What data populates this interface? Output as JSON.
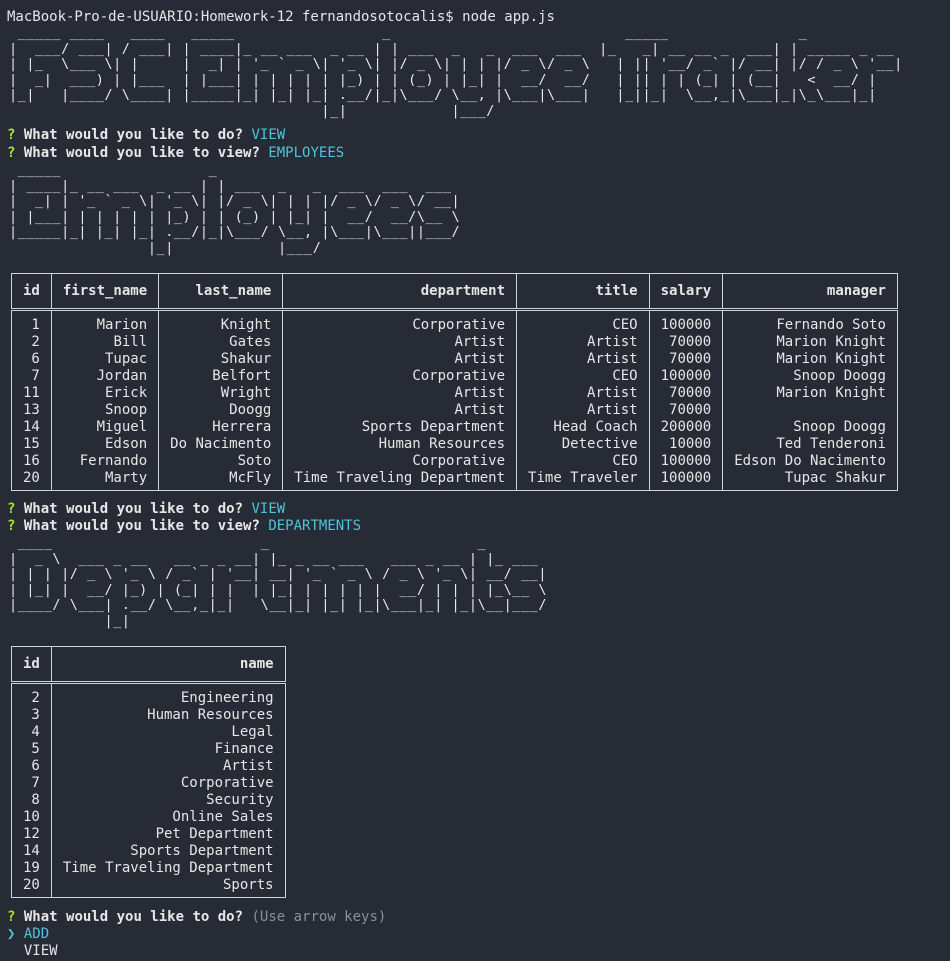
{
  "terminal": {
    "command_line": "MacBook-Pro-de-USUARIO:Homework-12 fernandosotocalis$ node app.js",
    "qmark": "?",
    "pointer": "❯"
  },
  "banners": {
    "tracker": " _____ ____   ____   _____                 _                           _____               _             \n|  ___/ ___| / ___| | ____|_ __ ___  _ __ | | ___  _   _  ___  ___  |_   _| __ __ _  ___| | _____ _ __ \n| |_  \\___ \\| |     |  _| | '_ ` _ \\| '_ \\| |/ _ \\| | | |/ _ \\/ _ \\   | || '__/ _` |/ __| |/ / _ \\ '__|\n|  _|  ___) | |___  | |___| | | | | | |_) | | (_) | |_| |  __/  __/   | || | | (_| | (__|   <  __/ |   \n|_|   |____/ \\____| |_____|_| |_| |_| .__/|_|\\___/ \\__, |\\___|\\___|   |_||_|  \\__,_|\\___|_|\\_\\___|_|   \n                                    |_|            |___/                                               ",
    "employees": " _____                 _                           \n| ____|_ __ ___  _ __ | | ___  _   _  ___  ___  ___ \n|  _| | '_ ` _ \\| '_ \\| |/ _ \\| | | |/ _ \\/ _ \\/ __|\n| |___| | | | | | |_) | | (_) | |_| |  __/  __/\\__ \\\n|_____|_| |_| |_| .__/|_|\\___/ \\__, |\\___|\\___||___/\n                |_|            |___/                ",
    "departments": " ____                        _                        _       \n|  _ \\  ___ _ __   __ _ _ __| |_ _ __ ___   ___ _ __ | |_ ___ \n| | | |/ _ \\ '_ \\ / _` | '__| __| '_ ` _ \\ / _ \\ '_ \\| __/ __|\n| |_| |  __/ |_) | (_| | |  | |_| | | | | |  __/ | | | |_\\__ \\\n|____/ \\___| .__/ \\__,_|_|   \\__|_| |_| |_|\\___|_| |_|\\__|___/\n           |_|                                                 "
  },
  "prompts": {
    "p1_question": "What would you like to do?",
    "p1_answer": "VIEW",
    "p2_question": "What would you like to view?",
    "p2_answer": "EMPLOYEES",
    "p3_question": "What would you like to do?",
    "p3_answer": "VIEW",
    "p4_question": "What would you like to view?",
    "p4_answer": "DEPARTMENTS",
    "p5_question": "What would you like to do?",
    "p5_hint": "(Use arrow keys)",
    "menu_selected": "ADD",
    "menu_other": "VIEW"
  },
  "employees_table": {
    "columns": [
      "id",
      "first_name",
      "last_name",
      "department",
      "title",
      "salary",
      "manager"
    ],
    "rows": [
      [
        "1",
        "Marion",
        "Knight",
        "Corporative",
        "CEO",
        "100000",
        "Fernando Soto"
      ],
      [
        "2",
        "Bill",
        "Gates",
        "Artist",
        "Artist",
        "70000",
        "Marion Knight"
      ],
      [
        "6",
        "Tupac",
        "Shakur",
        "Artist",
        "Artist",
        "70000",
        "Marion Knight"
      ],
      [
        "7",
        "Jordan",
        "Belfort",
        "Corporative",
        "CEO",
        "100000",
        "Snoop Doogg"
      ],
      [
        "11",
        "Erick",
        "Wright",
        "Artist",
        "Artist",
        "70000",
        "Marion Knight"
      ],
      [
        "13",
        "Snoop",
        "Doogg",
        "Artist",
        "Artist",
        "70000",
        ""
      ],
      [
        "14",
        "Miguel",
        "Herrera",
        "Sports Department",
        "Head Coach",
        "200000",
        "Snoop Doogg"
      ],
      [
        "15",
        "Edson",
        "Do Nacimento",
        "Human Resources",
        "Detective",
        "10000",
        "Ted Tenderoni"
      ],
      [
        "16",
        "Fernando",
        "Soto",
        "Corporative",
        "CEO",
        "100000",
        "Edson Do Nacimento"
      ],
      [
        "20",
        "Marty",
        "McFly",
        "Time Traveling Department",
        "Time Traveler",
        "100000",
        "Tupac Shakur"
      ]
    ]
  },
  "departments_table": {
    "columns": [
      "id",
      "name"
    ],
    "rows": [
      [
        "2",
        "Engineering"
      ],
      [
        "3",
        "Human Resources"
      ],
      [
        "4",
        "Legal"
      ],
      [
        "5",
        "Finance"
      ],
      [
        "6",
        "Artist"
      ],
      [
        "7",
        "Corporative"
      ],
      [
        "8",
        "Security"
      ],
      [
        "10",
        "Online Sales"
      ],
      [
        "12",
        "Pet Department"
      ],
      [
        "14",
        "Sports Department"
      ],
      [
        "19",
        "Time Traveling Department"
      ],
      [
        "20",
        "Sports"
      ]
    ]
  },
  "colors": {
    "background": "#272b35",
    "question_mark": "#a6e22e",
    "answer": "#4fc3d9",
    "hint": "#8a8f99"
  }
}
